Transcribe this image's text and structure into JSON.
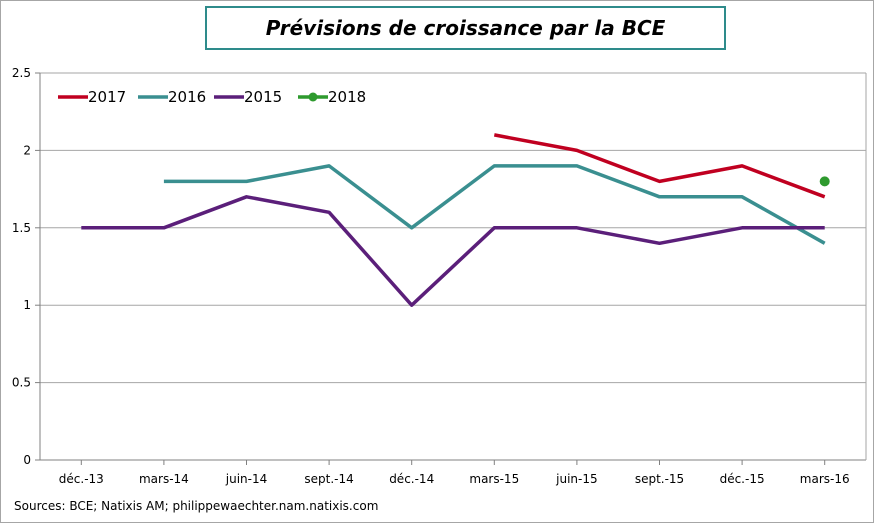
{
  "chart_data": {
    "type": "line",
    "title": "Prévisions de croissance par la BCE",
    "categories": [
      "déc.-13",
      "mars-14",
      "juin-14",
      "sept.-14",
      "déc.-14",
      "mars-15",
      "juin-15",
      "sept.-15",
      "déc.-15",
      "mars-16"
    ],
    "ylim": [
      0,
      2.5
    ],
    "yticks": [
      "0",
      "0.5",
      "1",
      "1.5",
      "2",
      "2.5"
    ],
    "grid": true,
    "legend_position": "top-left",
    "series": [
      {
        "name": "2017",
        "color": "#c00020",
        "values": [
          null,
          null,
          null,
          null,
          null,
          2.1,
          2.0,
          1.8,
          1.9,
          1.7
        ]
      },
      {
        "name": "2016",
        "color": "#3a8f90",
        "values": [
          null,
          1.8,
          1.8,
          1.9,
          1.5,
          1.9,
          1.9,
          1.7,
          1.7,
          1.4
        ]
      },
      {
        "name": "2015",
        "color": "#5b1f7a",
        "values": [
          1.5,
          1.5,
          1.7,
          1.6,
          1.0,
          1.5,
          1.5,
          1.4,
          1.5,
          1.5
        ]
      },
      {
        "name": "2018",
        "color": "#2e9a2e",
        "marker": "dot",
        "values": [
          null,
          null,
          null,
          null,
          null,
          null,
          null,
          null,
          null,
          1.8
        ]
      }
    ],
    "source": "Sources: BCE; Natixis AM; philippewaechter.nam.natixis.com"
  }
}
